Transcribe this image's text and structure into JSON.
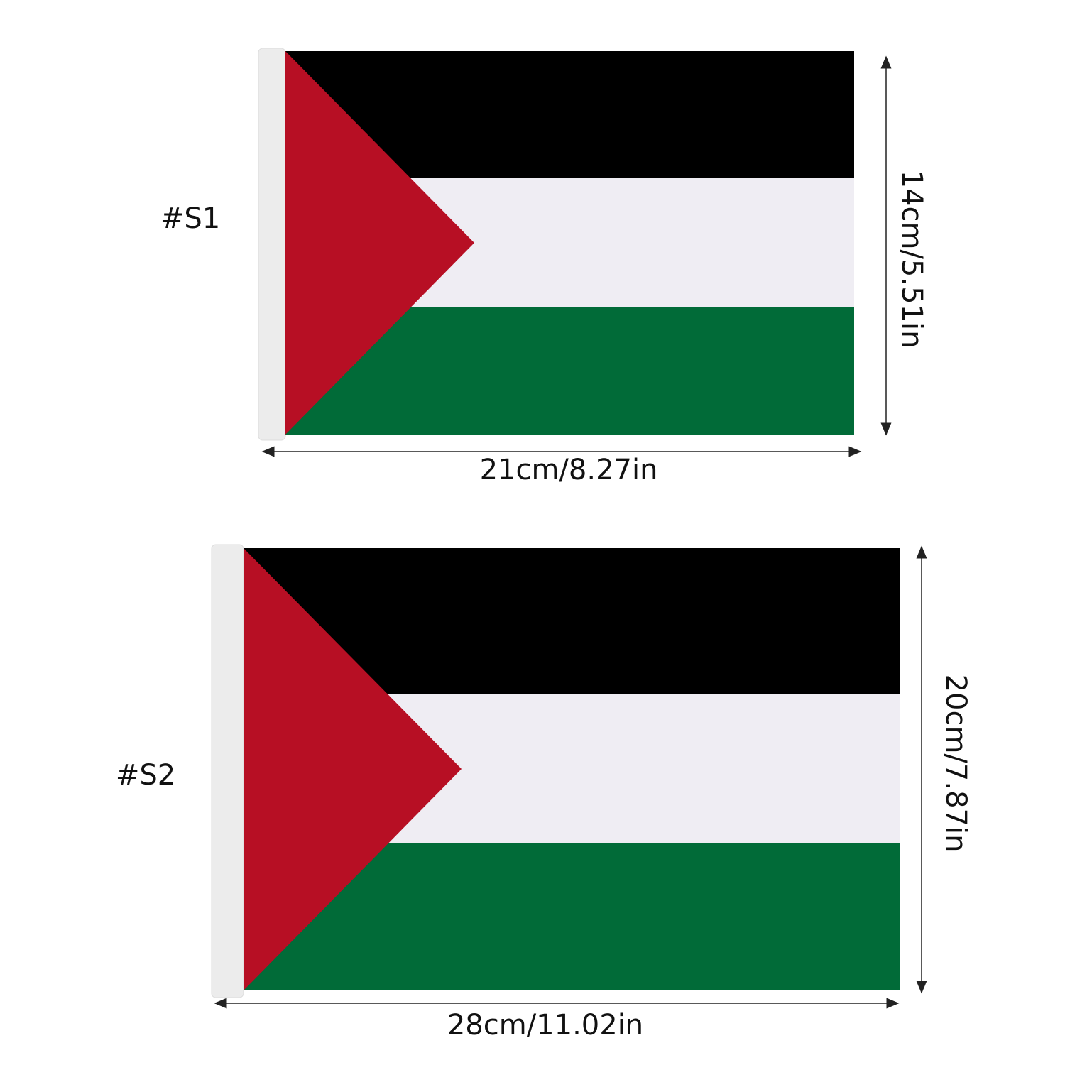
{
  "colors": {
    "black": "#000000",
    "white": "#efedf3",
    "green": "#016b38",
    "red": "#b70f24",
    "pole": "#eeeeee"
  },
  "flags": [
    {
      "label": "#S1",
      "width_label": "21cm/8.27in",
      "height_label": "14cm/5.51in"
    },
    {
      "label": "#S2",
      "width_label": "28cm/11.02in",
      "height_label": "20cm/7.87in"
    }
  ]
}
